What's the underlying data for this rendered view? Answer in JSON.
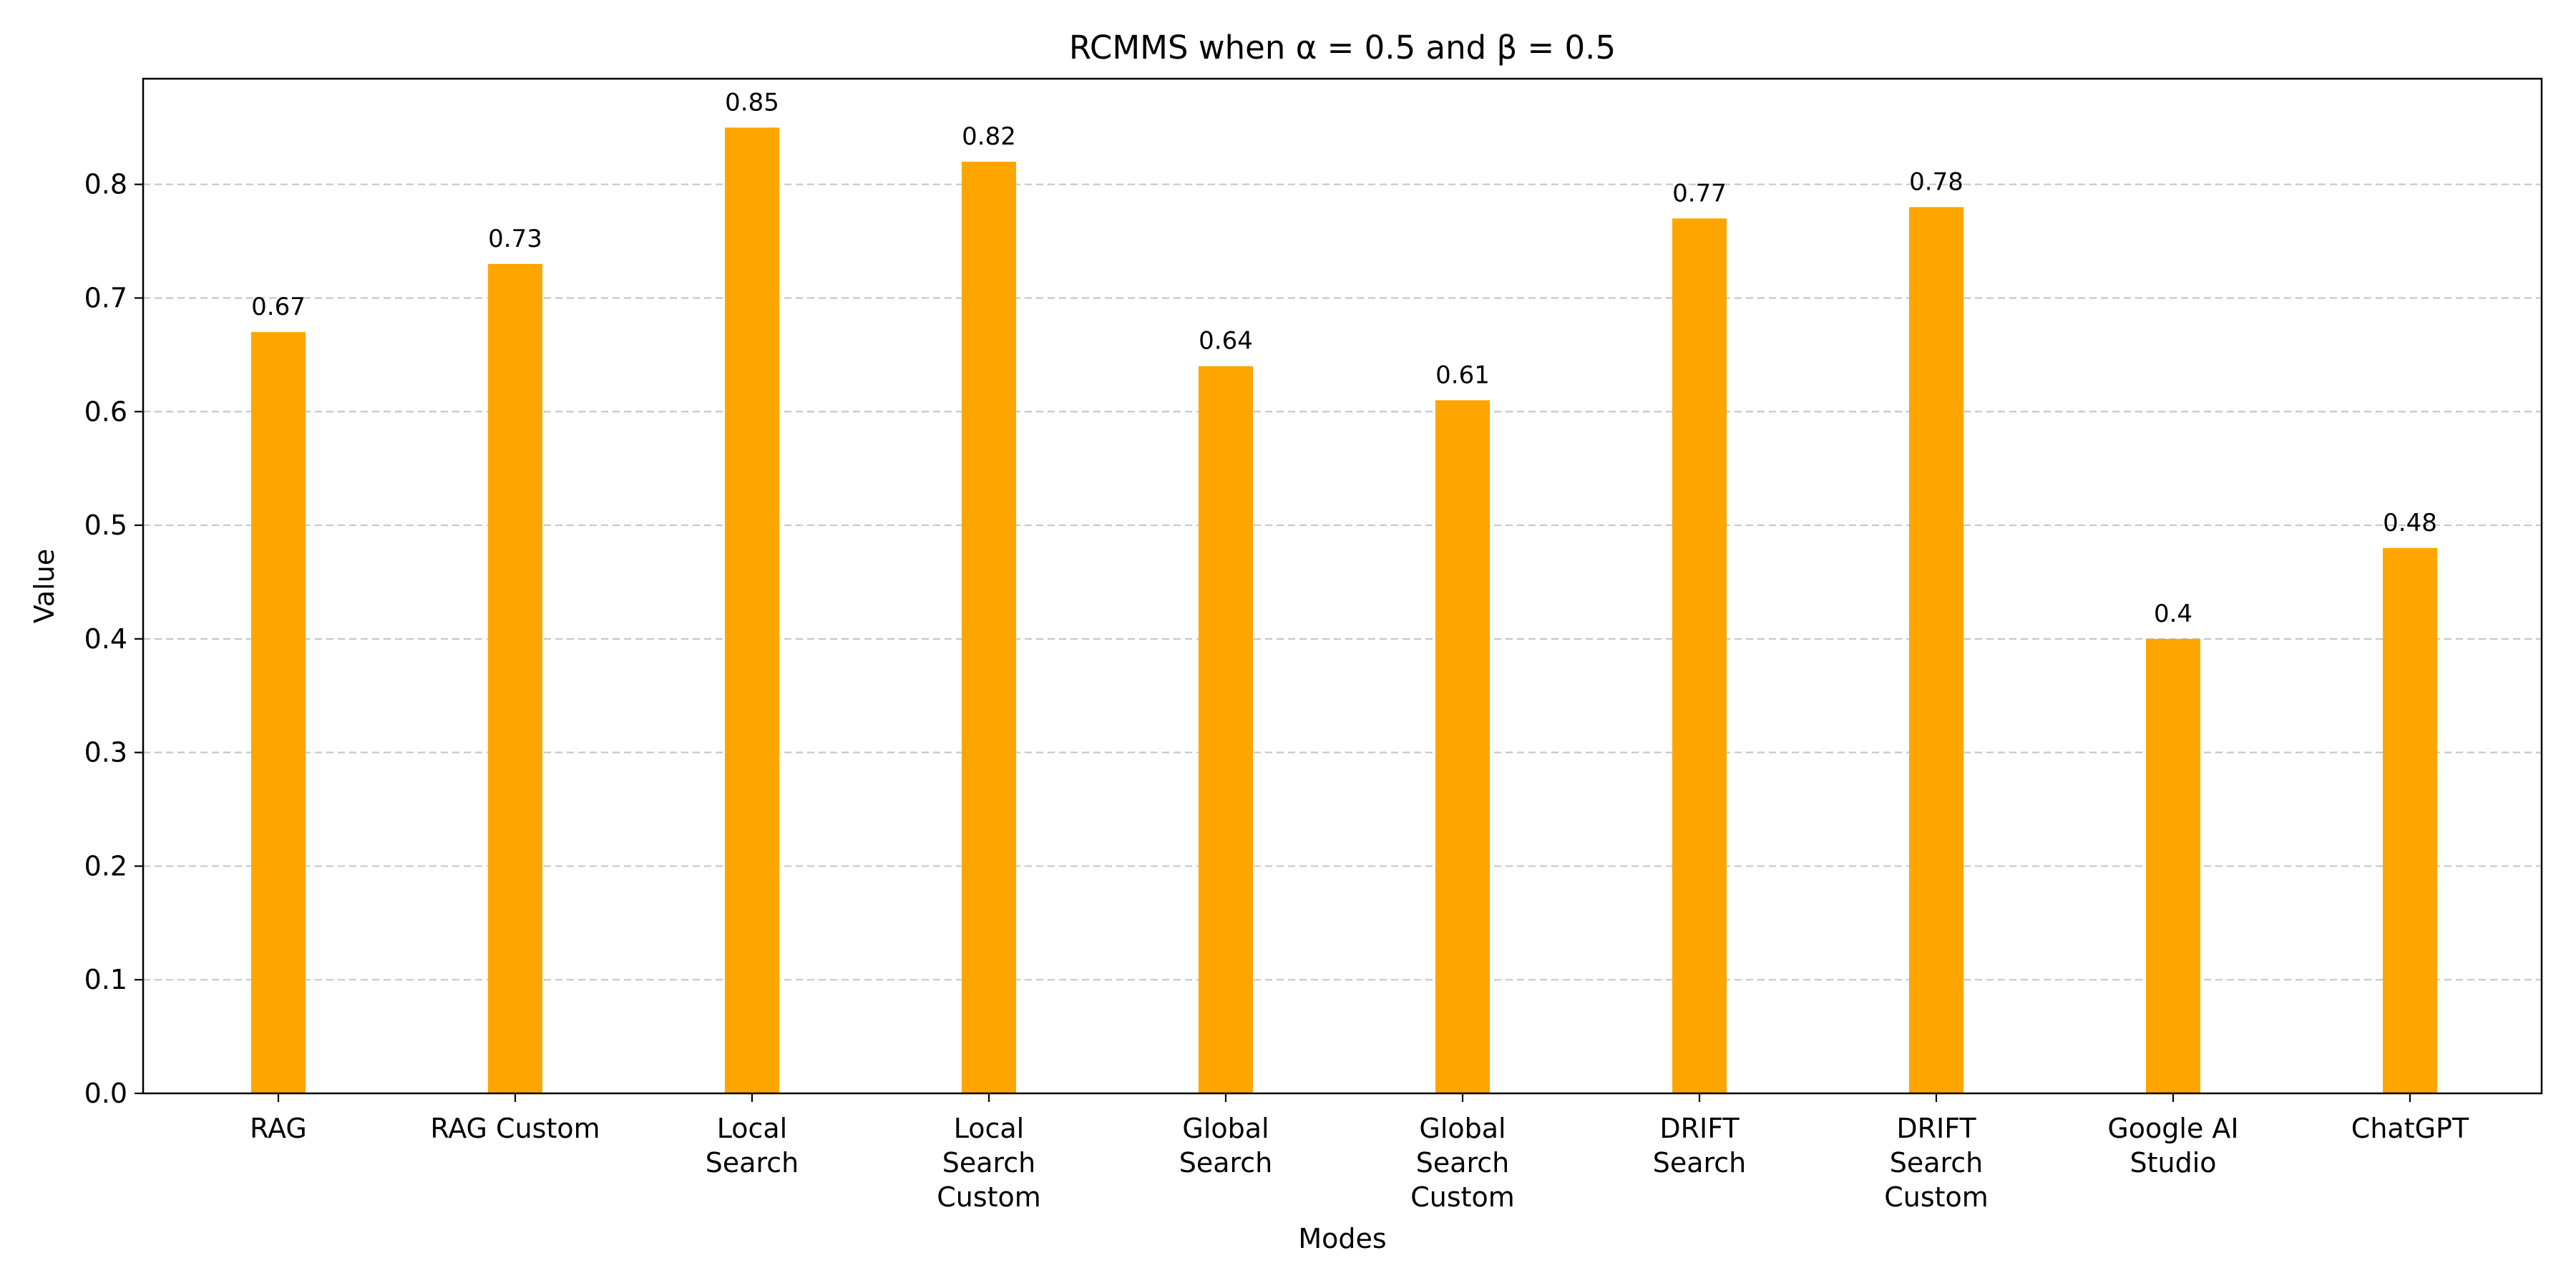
{
  "chart_data": {
    "type": "bar",
    "title": "RCMMS when α = 0.5 and β = 0.5",
    "xlabel": "Modes",
    "ylabel": "Value",
    "categories": [
      "RAG",
      "RAG Custom",
      "Local\nSearch",
      "Local\nSearch\nCustom",
      "Global\nSearch",
      "Global\nSearch\nCustom",
      "DRIFT\nSearch",
      "DRIFT\nSearch\nCustom",
      "Google AI\nStudio",
      "ChatGPT"
    ],
    "values": [
      0.67,
      0.73,
      0.85,
      0.82,
      0.64,
      0.61,
      0.77,
      0.78,
      0.4,
      0.48
    ],
    "data_labels": [
      "0.67",
      "0.73",
      "0.85",
      "0.82",
      "0.64",
      "0.61",
      "0.77",
      "0.78",
      "0.4",
      "0.48"
    ],
    "ylim": [
      0,
      0.893
    ],
    "yticks": [
      0.0,
      0.1,
      0.2,
      0.3,
      0.4,
      0.5,
      0.6,
      0.7,
      0.8
    ],
    "ytick_labels": [
      "0.0",
      "0.1",
      "0.2",
      "0.3",
      "0.4",
      "0.5",
      "0.6",
      "0.7",
      "0.8"
    ],
    "grid": "y-dashed",
    "bar_color": "#ffa500",
    "grid_color": "#c8c8c8"
  }
}
